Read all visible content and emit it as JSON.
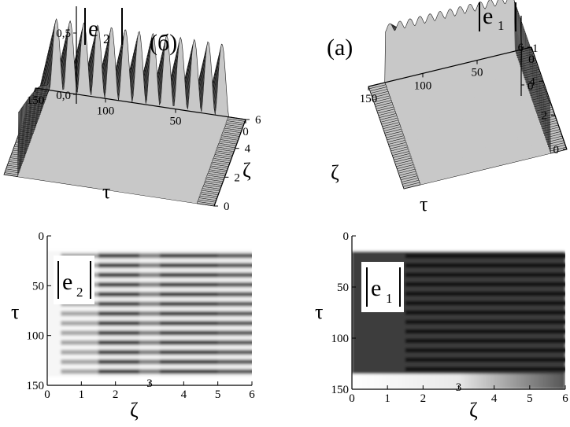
{
  "chart_data": [
    {
      "id": "surface-e2",
      "type": "surface3d",
      "panel_label": "(б)",
      "zlabel": "|e2|",
      "zlabel_main": "e",
      "zlabel_sub": "2",
      "xlabel": "τ",
      "ylabel": "ζ",
      "x_ticks": [
        150,
        100,
        50,
        0
      ],
      "y_ticks": [
        0,
        2,
        4,
        6
      ],
      "z_ticks": [
        "0,0",
        "0,5"
      ],
      "x_range": [
        0,
        150
      ],
      "y_range": [
        0,
        6
      ],
      "z_range": [
        0,
        0.6
      ],
      "peaks": 13,
      "colormap": "gray"
    },
    {
      "id": "surface-e1",
      "type": "surface3d",
      "panel_label": "(a)",
      "zlabel": "|e1|",
      "zlabel_main": "e",
      "zlabel_sub": "1",
      "xlabel": "τ",
      "ylabel": "ζ",
      "x_ticks": [
        150,
        100,
        50,
        0
      ],
      "y_ticks": [
        0,
        2,
        4,
        6
      ],
      "z_ticks": [
        "0",
        "1"
      ],
      "x_range": [
        0,
        150
      ],
      "y_range": [
        0,
        6
      ],
      "z_range": [
        0,
        1.3
      ],
      "peaks": 13,
      "colormap": "gray"
    },
    {
      "id": "heatmap-e2",
      "type": "heatmap",
      "legend_main": "e",
      "legend_sub": "2",
      "xlabel": "ζ",
      "ylabel": "τ",
      "x_ticks": [
        0,
        1,
        2,
        3,
        4,
        5,
        6
      ],
      "y_ticks": [
        0,
        50,
        100,
        150
      ],
      "x_range": [
        0,
        6
      ],
      "y_range": [
        0,
        150
      ],
      "stripes": 13,
      "colormap": "gray"
    },
    {
      "id": "heatmap-e1",
      "type": "heatmap",
      "legend_main": "e",
      "legend_sub": "1",
      "xlabel": "ζ",
      "ylabel": "τ",
      "x_ticks": [
        0,
        1,
        2,
        3,
        4,
        5,
        6
      ],
      "y_ticks": [
        0,
        50,
        100,
        150
      ],
      "x_range": [
        0,
        6
      ],
      "y_range": [
        0,
        150
      ],
      "stripes": 13,
      "colormap": "gray"
    }
  ]
}
